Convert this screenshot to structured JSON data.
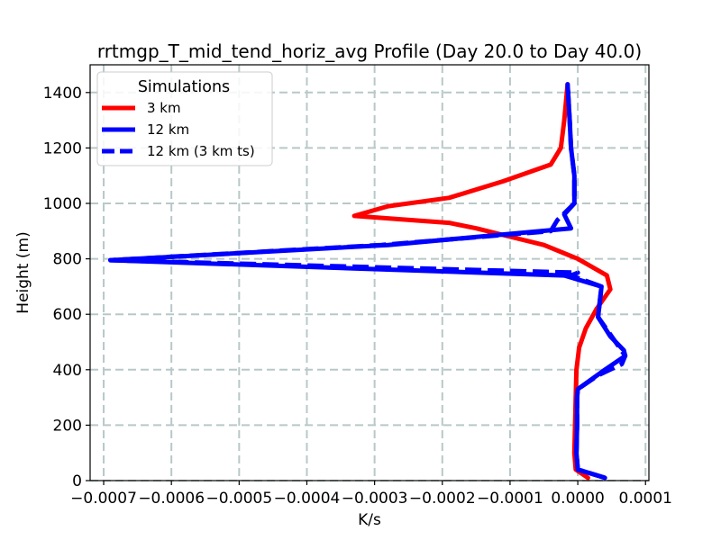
{
  "chart_data": {
    "type": "line",
    "title": "rrtmgp_T_mid_tend_horiz_avg Profile (Day 20.0 to Day 40.0)",
    "xlabel": "K/s",
    "ylabel": "Height (m)",
    "xlim": [
      -0.00072,
      0.000105
    ],
    "ylim": [
      0,
      1500
    ],
    "grid": true,
    "xticks": [
      -0.0007,
      -0.0006,
      -0.0005,
      -0.0004,
      -0.0003,
      -0.0002,
      -0.0001,
      0.0,
      0.0001
    ],
    "xtick_labels": [
      "−0.0007",
      "−0.0006",
      "−0.0005",
      "−0.0004",
      "−0.0003",
      "−0.0002",
      "−0.0001",
      "0.0000",
      "0.0001"
    ],
    "yticks": [
      0,
      200,
      400,
      600,
      800,
      1000,
      1200,
      1400
    ],
    "ytick_labels": [
      "0",
      "200",
      "400",
      "600",
      "800",
      "1000",
      "1200",
      "1400"
    ],
    "legend": {
      "title": "Simulations",
      "location": "upper-left"
    },
    "series": [
      {
        "name": "3 km",
        "color": "#ff0000",
        "style": "solid",
        "points": [
          [
            1.5e-05,
            10
          ],
          [
            -3e-06,
            40
          ],
          [
            -5e-06,
            100
          ],
          [
            -4e-06,
            200
          ],
          [
            -3e-06,
            300
          ],
          [
            -2e-06,
            400
          ],
          [
            2e-06,
            480
          ],
          [
            1.2e-05,
            550
          ],
          [
            2.8e-05,
            620
          ],
          [
            4.8e-05,
            690
          ],
          [
            4.3e-05,
            740
          ],
          [
            0.0,
            800
          ],
          [
            -5e-05,
            850
          ],
          [
            -0.0001,
            880
          ],
          [
            -0.00015,
            910
          ],
          [
            -0.00019,
            930
          ],
          [
            -0.00033,
            955
          ],
          [
            -0.00028,
            990
          ],
          [
            -0.00019,
            1020
          ],
          [
            -0.00011,
            1080
          ],
          [
            -4e-05,
            1140
          ],
          [
            -2.5e-05,
            1200
          ],
          [
            -2e-05,
            1300
          ],
          [
            -1.5e-05,
            1430
          ]
        ]
      },
      {
        "name": "12 km",
        "color": "#0000ff",
        "style": "solid",
        "points": [
          [
            4e-05,
            10
          ],
          [
            0.0,
            40
          ],
          [
            -2e-06,
            100
          ],
          [
            -1e-06,
            200
          ],
          [
            -1e-06,
            300
          ],
          [
            0.0,
            330
          ],
          [
            4e-05,
            400
          ],
          [
            7e-05,
            450
          ],
          [
            6.8e-05,
            470
          ],
          [
            4.8e-05,
            520
          ],
          [
            3e-05,
            590
          ],
          [
            3.5e-05,
            700
          ],
          [
            -2e-05,
            740
          ],
          [
            -0.00069,
            795
          ],
          [
            -0.00028,
            850
          ],
          [
            -1e-05,
            910
          ],
          [
            -2e-05,
            960
          ],
          [
            -5e-06,
            1000
          ],
          [
            -5e-06,
            1100
          ],
          [
            -1e-05,
            1200
          ],
          [
            -1.2e-05,
            1300
          ],
          [
            -1.5e-05,
            1430
          ]
        ]
      },
      {
        "name": "12 km (3 km ts)",
        "color": "#0000ff",
        "style": "dashed",
        "points": [
          [
            4e-05,
            10
          ],
          [
            0.0,
            40
          ],
          [
            -2e-06,
            100
          ],
          [
            -1e-06,
            200
          ],
          [
            -1e-06,
            300
          ],
          [
            0.0,
            330
          ],
          [
            3e-05,
            380
          ],
          [
            6.5e-05,
            420
          ],
          [
            7e-05,
            450
          ],
          [
            5e-05,
            520
          ],
          [
            3e-05,
            590
          ],
          [
            3.5e-05,
            700
          ],
          [
            -1e-05,
            740
          ],
          [
            0.0,
            750
          ],
          [
            -0.00069,
            795
          ],
          [
            -0.00029,
            850
          ],
          [
            -4e-05,
            900
          ],
          [
            -3e-05,
            940
          ],
          [
            -5e-06,
            1000
          ],
          [
            -5e-06,
            1100
          ],
          [
            -1e-05,
            1200
          ],
          [
            -1.2e-05,
            1300
          ],
          [
            -1.5e-05,
            1430
          ]
        ]
      }
    ]
  }
}
